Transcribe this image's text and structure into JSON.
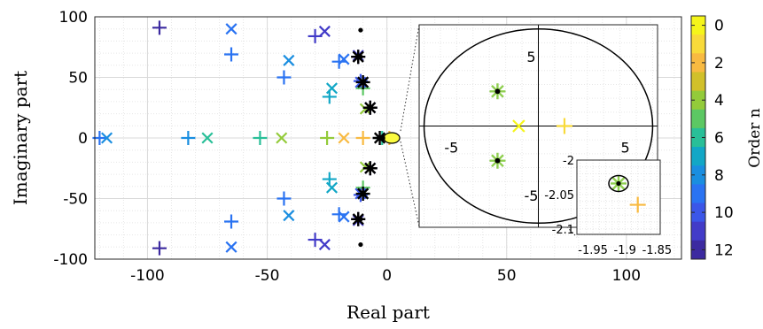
{
  "chart_data": [
    {
      "type": "scatter",
      "title": "",
      "xlabel": "Real part",
      "ylabel": "Imaginary part",
      "xlim": [
        -122,
        123
      ],
      "ylim": [
        -100,
        100
      ],
      "xticks": [
        -100,
        -50,
        0,
        50,
        100
      ],
      "xtick_labels": [
        "-100",
        "-50",
        "0",
        "50",
        "100"
      ],
      "yticks": [
        -100,
        -50,
        0,
        50,
        100
      ],
      "ytick_labels": [
        "-100",
        "-50",
        "0",
        "50",
        "100"
      ],
      "grid": "major and minor",
      "series": [
        {
          "marker": "plus",
          "points": [
            {
              "x": -95,
              "y": 91,
              "n": 12
            },
            {
              "x": -95,
              "y": -91,
              "n": 12
            },
            {
              "x": -65,
              "y": 69,
              "n": 9
            },
            {
              "x": -65,
              "y": -69,
              "n": 9
            },
            {
              "x": -120,
              "y": 0,
              "n": 9
            },
            {
              "x": -83,
              "y": 0,
              "n": 8
            },
            {
              "x": -43,
              "y": 50,
              "n": 9
            },
            {
              "x": -43,
              "y": -50,
              "n": 9
            },
            {
              "x": -53,
              "y": 0,
              "n": 6
            },
            {
              "x": -30,
              "y": 84,
              "n": 11
            },
            {
              "x": -30,
              "y": -84,
              "n": 11
            },
            {
              "x": -20,
              "y": 63,
              "n": 9
            },
            {
              "x": -20,
              "y": -63,
              "n": 9
            },
            {
              "x": -24,
              "y": 34,
              "n": 7
            },
            {
              "x": -24,
              "y": -34,
              "n": 7
            },
            {
              "x": -25,
              "y": 0,
              "n": 4
            },
            {
              "x": -12,
              "y": 67,
              "n": 12
            },
            {
              "x": -12,
              "y": -67,
              "n": 12
            },
            {
              "x": -11,
              "y": 47,
              "n": 10
            },
            {
              "x": -11,
              "y": -47,
              "n": 10
            },
            {
              "x": -10,
              "y": 41,
              "n": 5
            },
            {
              "x": -10,
              "y": -41,
              "n": 5
            },
            {
              "x": -7,
              "y": 25,
              "n": 12
            },
            {
              "x": -7,
              "y": -25,
              "n": 12
            },
            {
              "x": -10,
              "y": 0,
              "n": 2
            },
            {
              "x": 1,
              "y": 0,
              "n": 2
            },
            {
              "x": -2,
              "y": 0,
              "n": 6
            }
          ]
        },
        {
          "marker": "cross",
          "points": [
            {
              "x": -65,
              "y": 90,
              "n": 9
            },
            {
              "x": -65,
              "y": -90,
              "n": 9
            },
            {
              "x": -117,
              "y": 0,
              "n": 8
            },
            {
              "x": -75,
              "y": 0,
              "n": 6
            },
            {
              "x": -41,
              "y": 64,
              "n": 8
            },
            {
              "x": -41,
              "y": -64,
              "n": 8
            },
            {
              "x": -44,
              "y": 0,
              "n": 4
            },
            {
              "x": -26,
              "y": 88,
              "n": 11
            },
            {
              "x": -26,
              "y": -88,
              "n": 11
            },
            {
              "x": -18,
              "y": 65,
              "n": 9
            },
            {
              "x": -18,
              "y": -65,
              "n": 9
            },
            {
              "x": -23,
              "y": 41,
              "n": 7
            },
            {
              "x": -23,
              "y": -41,
              "n": 7
            },
            {
              "x": -18,
              "y": 0,
              "n": 2
            },
            {
              "x": -12,
              "y": 68,
              "n": 11
            },
            {
              "x": -12,
              "y": -68,
              "n": 11
            },
            {
              "x": -11,
              "y": 46,
              "n": 10
            },
            {
              "x": -11,
              "y": -46,
              "n": 10
            },
            {
              "x": -7,
              "y": 25,
              "n": 11
            },
            {
              "x": -7,
              "y": -25,
              "n": 11
            },
            {
              "x": -9,
              "y": 24,
              "n": 4
            },
            {
              "x": -9,
              "y": -24,
              "n": 4
            }
          ]
        },
        {
          "marker": "star",
          "points": [
            {
              "x": -12,
              "y": 67,
              "n": 12
            },
            {
              "x": -12,
              "y": -67,
              "n": 12
            },
            {
              "x": -10,
              "y": 46,
              "n": 12
            },
            {
              "x": -10,
              "y": -46,
              "n": 12
            },
            {
              "x": -7,
              "y": 25,
              "n": 12
            },
            {
              "x": -7,
              "y": -25,
              "n": 12
            },
            {
              "x": -3,
              "y": 0,
              "n": 12
            }
          ]
        },
        {
          "marker": "dot",
          "points": [
            {
              "x": -11,
              "y": 89
            },
            {
              "x": -11,
              "y": -88
            },
            {
              "x": -11,
              "y": 67
            },
            {
              "x": -11,
              "y": -67
            },
            {
              "x": -10,
              "y": 46
            },
            {
              "x": -10,
              "y": -46
            },
            {
              "x": -7,
              "y": 25
            },
            {
              "x": -7,
              "y": -25
            },
            {
              "x": -3,
              "y": 0
            }
          ]
        }
      ]
    },
    {
      "type": "scatter",
      "title": "",
      "xlim": [
        -7.3,
        7.3
      ],
      "ylim": [
        -7.3,
        7.3
      ],
      "xticks": [
        -5,
        5
      ],
      "xtick_labels": [
        "-5",
        "5"
      ],
      "yticks": [
        5,
        -5
      ],
      "ytick_labels": [
        "5",
        "-5"
      ],
      "circle": {
        "cx": 0,
        "cy": 0,
        "r": 7
      },
      "series": [
        {
          "marker": "cross",
          "points": [
            {
              "x": -1.2,
              "y": 0,
              "n": 0
            }
          ]
        },
        {
          "marker": "plus",
          "points": [
            {
              "x": 1.6,
              "y": 0,
              "n": 1
            }
          ]
        },
        {
          "marker": "star",
          "points": [
            {
              "x": -2.5,
              "y": 2.5,
              "n": 5
            },
            {
              "x": -2.5,
              "y": -2.5,
              "n": 5
            }
          ]
        },
        {
          "marker": "dot",
          "points": [
            {
              "x": -2.5,
              "y": 2.5
            },
            {
              "x": -2.5,
              "y": -2.5
            }
          ]
        }
      ]
    },
    {
      "type": "scatter",
      "title": "",
      "xlim": [
        -1.975,
        -1.845
      ],
      "ylim": [
        -2.108,
        -2.0
      ],
      "xticks": [
        -1.95,
        -1.9,
        -1.85
      ],
      "xtick_labels": [
        "-1.95",
        "-1.9",
        "-1.85"
      ],
      "yticks": [
        -2,
        -2.05,
        -2.1
      ],
      "ytick_labels": [
        "-2",
        "-2.05",
        "-2.1"
      ],
      "series": [
        {
          "marker": "star",
          "points": [
            {
              "x": -1.91,
              "y": -2.034,
              "n": 5
            }
          ]
        },
        {
          "marker": "dot",
          "points": [
            {
              "x": -1.91,
              "y": -2.034
            }
          ]
        },
        {
          "marker": "plus",
          "points": [
            {
              "x": -1.88,
              "y": -2.065,
              "n": 2
            }
          ]
        }
      ]
    }
  ],
  "colorbar": {
    "label": "Order n",
    "ticks": [
      "0",
      "2",
      "4",
      "6",
      "8",
      "10",
      "12"
    ],
    "colors": [
      "#f5f51a",
      "#f8da3a",
      "#f8ba41",
      "#d1c02a",
      "#93cb3a",
      "#5cc863",
      "#29bf98",
      "#12a7c6",
      "#1a8ee0",
      "#2a73f2",
      "#3b56e8",
      "#423bc8",
      "#3c2aa0"
    ]
  }
}
